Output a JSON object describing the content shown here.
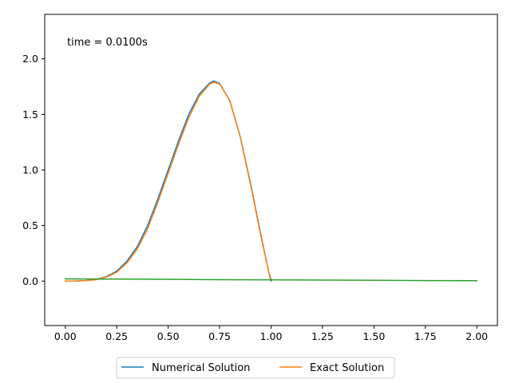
{
  "chart_data": {
    "type": "line",
    "title": "",
    "xlabel": "",
    "ylabel": "",
    "xlim": [
      -0.1,
      2.1
    ],
    "ylim": [
      -0.4,
      2.4
    ],
    "xticks": [
      0.0,
      0.25,
      0.5,
      0.75,
      1.0,
      1.25,
      1.5,
      1.75,
      2.0
    ],
    "xtick_labels": [
      "0.00",
      "0.25",
      "0.50",
      "0.75",
      "1.00",
      "1.25",
      "1.50",
      "1.75",
      "2.00"
    ],
    "yticks": [
      0.0,
      0.5,
      1.0,
      1.5,
      2.0
    ],
    "ytick_labels": [
      "0.0",
      "0.5",
      "1.0",
      "1.5",
      "2.0"
    ],
    "grid": false,
    "annotation": "time = 0.0100s",
    "legend_position": "bottom-center, outside plot",
    "series": [
      {
        "name": "Numerical Solution",
        "color": "#1f77b4",
        "in_legend": true,
        "x": [
          0.0,
          0.05,
          0.1,
          0.15,
          0.2,
          0.25,
          0.3,
          0.35,
          0.4,
          0.45,
          0.5,
          0.55,
          0.6,
          0.65,
          0.7,
          0.72,
          0.75,
          0.8,
          0.85,
          0.9,
          0.95,
          0.99,
          1.0
        ],
        "y": [
          0.0,
          0.0,
          0.005,
          0.015,
          0.04,
          0.09,
          0.18,
          0.31,
          0.5,
          0.74,
          1.0,
          1.26,
          1.5,
          1.68,
          1.78,
          1.8,
          1.78,
          1.62,
          1.3,
          0.88,
          0.42,
          0.07,
          0.0
        ]
      },
      {
        "name": "Exact Solution",
        "color": "#ff7f0e",
        "in_legend": true,
        "x": [
          0.0,
          0.05,
          0.1,
          0.15,
          0.2,
          0.25,
          0.3,
          0.35,
          0.4,
          0.45,
          0.5,
          0.55,
          0.6,
          0.65,
          0.7,
          0.72,
          0.75,
          0.8,
          0.85,
          0.9,
          0.95,
          0.99,
          1.0
        ],
        "y": [
          0.0,
          0.0,
          0.005,
          0.013,
          0.036,
          0.08,
          0.165,
          0.29,
          0.47,
          0.71,
          0.97,
          1.23,
          1.47,
          1.66,
          1.77,
          1.79,
          1.775,
          1.62,
          1.3,
          0.87,
          0.41,
          0.07,
          0.02
        ]
      },
      {
        "name": "",
        "color": "#2ca02c",
        "in_legend": false,
        "x": [
          0.0,
          0.25,
          0.5,
          0.75,
          1.0,
          1.25,
          1.5,
          1.75,
          2.0
        ],
        "y": [
          0.02,
          0.018,
          0.016,
          0.013,
          0.011,
          0.009,
          0.007,
          0.005,
          0.004
        ]
      }
    ]
  }
}
